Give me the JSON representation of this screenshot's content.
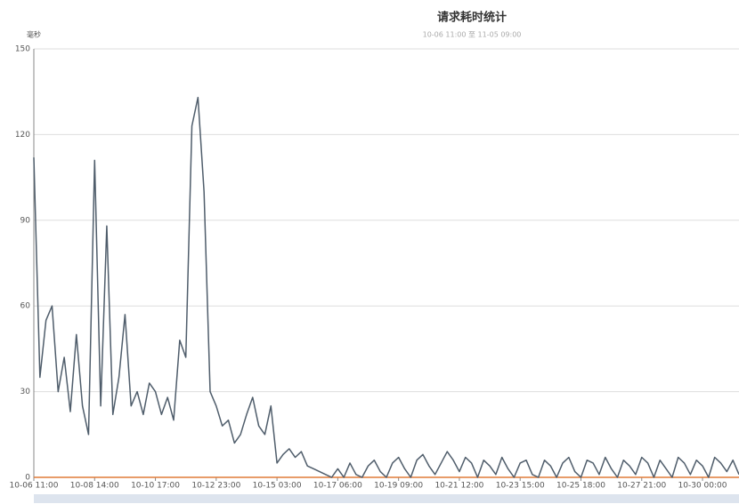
{
  "chart_data": {
    "type": "line",
    "title": "请求耗时统计",
    "subtitle": "10-06 11:00 至 11-05 09:00",
    "y_axis_label": "毫秒",
    "categories": [
      "10-06 11:00",
      null,
      null,
      null,
      null,
      null,
      null,
      null,
      null,
      null,
      "10-08 14:00",
      null,
      null,
      null,
      null,
      null,
      null,
      null,
      null,
      null,
      "10-10 17:00",
      null,
      null,
      null,
      null,
      null,
      null,
      null,
      null,
      null,
      "10-12 23:00",
      null,
      null,
      null,
      null,
      null,
      null,
      null,
      null,
      null,
      "10-15 03:00",
      null,
      null,
      null,
      null,
      null,
      null,
      null,
      null,
      null,
      "10-17 06:00",
      null,
      null,
      null,
      null,
      null,
      null,
      null,
      null,
      null,
      "10-19 09:00",
      null,
      null,
      null,
      null,
      null,
      null,
      null,
      null,
      null,
      "10-21 12:00",
      null,
      null,
      null,
      null,
      null,
      null,
      null,
      null,
      null,
      "10-23 15:00",
      null,
      null,
      null,
      null,
      null,
      null,
      null,
      null,
      null,
      "10-25 18:00",
      null,
      null,
      null,
      null,
      null,
      null,
      null,
      null,
      null,
      "10-27 21:00",
      null,
      null,
      null,
      null,
      null,
      null,
      null,
      null,
      null,
      "10-30 00:00",
      null,
      null,
      null,
      null,
      null,
      null
    ],
    "series": [
      {
        "color": "#4f5d6b",
        "values": [
          112,
          35,
          55,
          60,
          30,
          42,
          23,
          50,
          25,
          15,
          111,
          25,
          88,
          22,
          35,
          57,
          25,
          30,
          22,
          33,
          30,
          22,
          28,
          20,
          48,
          42,
          123,
          133,
          100,
          30,
          25,
          18,
          20,
          12,
          15,
          22,
          28,
          18,
          15,
          25,
          5,
          8,
          10,
          7,
          9,
          4,
          3,
          2,
          1,
          0,
          3,
          0,
          5,
          1,
          0,
          4,
          6,
          2,
          0,
          5,
          7,
          3,
          0,
          6,
          8,
          4,
          1,
          5,
          9,
          6,
          2,
          7,
          5,
          0,
          6,
          4,
          1,
          7,
          3,
          0,
          5,
          6,
          1,
          0,
          6,
          4,
          0,
          5,
          7,
          2,
          0,
          6,
          5,
          1,
          7,
          3,
          0,
          6,
          4,
          1,
          7,
          5,
          0,
          6,
          3,
          0,
          7,
          5,
          1,
          6,
          4,
          0,
          7,
          5,
          2,
          6,
          1
        ]
      },
      {
        "color": "#e07b39",
        "values": [
          0,
          0,
          0,
          0,
          0,
          0,
          0,
          0,
          0,
          0,
          0,
          0,
          0,
          0,
          0,
          0,
          0,
          0,
          0,
          0,
          0,
          0,
          0,
          0,
          0,
          0,
          0,
          0,
          0,
          0,
          0,
          0,
          0,
          0,
          0,
          0,
          0,
          0,
          0,
          0,
          0,
          0,
          0,
          0,
          0,
          0,
          0,
          0,
          0,
          0,
          0,
          0,
          0,
          0,
          0,
          0,
          0,
          0,
          0,
          0,
          0,
          0,
          0,
          0,
          0,
          0,
          0,
          0,
          0,
          0,
          0,
          0,
          0,
          0,
          0,
          0,
          0,
          0,
          0,
          0,
          0,
          0,
          0,
          0,
          0,
          0,
          0,
          0,
          0,
          0,
          0,
          0,
          0,
          0,
          0,
          0,
          0,
          0,
          0,
          0,
          0,
          0,
          0,
          0,
          0,
          0,
          0,
          0,
          0,
          0,
          0,
          0,
          0,
          0,
          0,
          0,
          0
        ]
      }
    ],
    "ylim": [
      0,
      150
    ],
    "yticks": [
      0,
      30,
      60,
      90,
      120,
      150
    ],
    "grid": true
  }
}
